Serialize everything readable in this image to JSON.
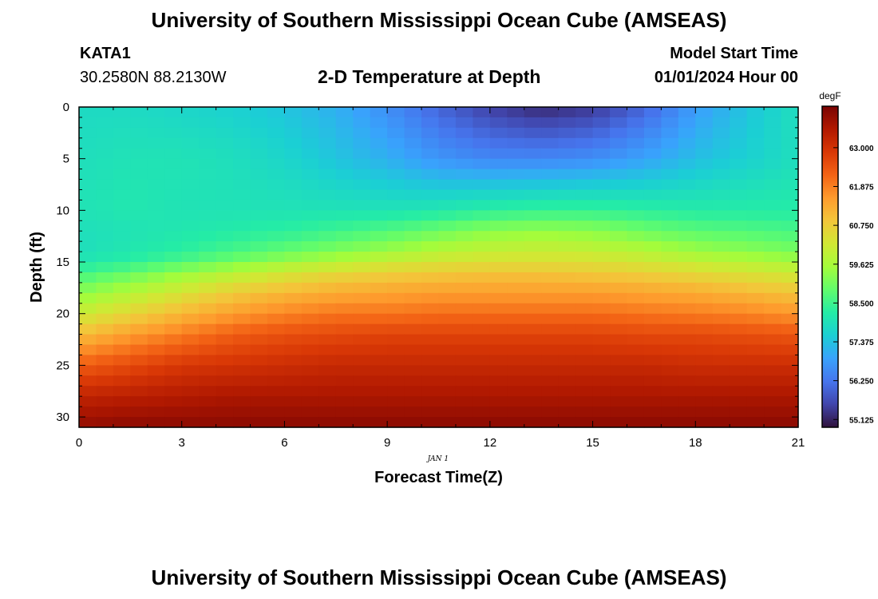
{
  "header": {
    "title": "University of Southern Mississippi Ocean Cube (AMSEAS)",
    "station": "KATA1",
    "coords": "30.2580N  88.2130W",
    "subtitle": "2-D Temperature at Depth",
    "start_label": "Model Start Time",
    "start_value": "01/01/2024 Hour 00"
  },
  "footer": {
    "title": "University of Southern Mississippi Ocean Cube (AMSEAS)"
  },
  "chart_data": {
    "type": "heatmap",
    "title": "2-D Temperature at Depth",
    "xlabel": "Forecast Time(Z)",
    "ylabel": "Depth (ft)",
    "x_date_label": "JAN 1",
    "xlim": [
      0,
      21
    ],
    "ylim": [
      31,
      0
    ],
    "xticks": [
      0,
      3,
      6,
      9,
      12,
      15,
      18,
      21
    ],
    "yticks": [
      0,
      5,
      10,
      15,
      20,
      25,
      30
    ],
    "colorbar": {
      "units": "degF",
      "min": 54.9,
      "max": 64.2,
      "ticks": [
        "63.000",
        "61.875",
        "60.750",
        "59.625",
        "58.500",
        "57.375",
        "56.250",
        "55.125"
      ],
      "colors": [
        "#30123b",
        "#4145ab",
        "#4675ed",
        "#39a2fc",
        "#1bcfd4",
        "#24eca6",
        "#61fc6c",
        "#a4fc3b",
        "#d1e834",
        "#f3c63a",
        "#fe9b2d",
        "#f36315",
        "#d93806",
        "#b11901",
        "#7a0403"
      ]
    },
    "depths": [
      0,
      5,
      10,
      12,
      14,
      15,
      16,
      18,
      20,
      22,
      25,
      28,
      31
    ],
    "times": [
      0,
      1.5,
      3,
      4.5,
      6,
      7.5,
      9,
      10.5,
      12,
      13.5,
      15,
      16.5,
      18,
      19.5,
      21
    ],
    "values": [
      [
        57.8,
        57.8,
        57.7,
        57.6,
        57.4,
        57.1,
        56.6,
        56.0,
        55.5,
        55.2,
        55.4,
        56.0,
        56.8,
        57.4,
        57.9
      ],
      [
        57.9,
        58.0,
        58.0,
        57.9,
        57.7,
        57.4,
        57.1,
        56.7,
        56.5,
        56.5,
        56.6,
        56.9,
        57.3,
        57.6,
        57.9
      ],
      [
        58.0,
        58.1,
        58.0,
        58.0,
        58.0,
        58.0,
        58.0,
        58.1,
        58.3,
        58.4,
        58.4,
        58.3,
        58.2,
        58.2,
        58.2
      ],
      [
        57.9,
        58.0,
        58.1,
        58.2,
        58.3,
        58.5,
        58.7,
        59.0,
        59.3,
        59.4,
        59.3,
        59.0,
        58.8,
        58.7,
        58.6
      ],
      [
        57.9,
        58.1,
        58.3,
        58.6,
        58.9,
        59.2,
        59.5,
        59.8,
        60.0,
        60.1,
        60.0,
        59.8,
        59.5,
        59.3,
        59.1
      ],
      [
        58.1,
        58.3,
        58.7,
        59.1,
        59.5,
        59.8,
        60.1,
        60.3,
        60.4,
        60.4,
        60.4,
        60.2,
        60.0,
        59.8,
        59.6
      ],
      [
        58.5,
        58.9,
        59.4,
        59.8,
        60.2,
        60.5,
        60.7,
        60.8,
        60.9,
        60.9,
        60.8,
        60.7,
        60.5,
        60.3,
        60.1
      ],
      [
        59.3,
        59.8,
        60.3,
        60.8,
        61.1,
        61.3,
        61.4,
        61.5,
        61.5,
        61.5,
        61.5,
        61.4,
        61.3,
        61.1,
        60.9
      ],
      [
        60.1,
        60.6,
        61.1,
        61.5,
        61.8,
        62.0,
        62.0,
        62.1,
        62.1,
        62.1,
        62.1,
        62.0,
        61.9,
        61.8,
        61.6
      ],
      [
        61.0,
        61.5,
        61.9,
        62.3,
        62.5,
        62.6,
        62.7,
        62.7,
        62.7,
        62.7,
        62.7,
        62.6,
        62.6,
        62.5,
        62.4
      ],
      [
        62.3,
        62.6,
        62.9,
        63.0,
        63.1,
        63.2,
        63.2,
        63.2,
        63.2,
        63.2,
        63.2,
        63.2,
        63.1,
        63.1,
        63.1
      ],
      [
        63.3,
        63.4,
        63.5,
        63.6,
        63.6,
        63.6,
        63.6,
        63.6,
        63.6,
        63.6,
        63.6,
        63.6,
        63.6,
        63.6,
        63.6
      ],
      [
        63.9,
        64.0,
        64.0,
        64.0,
        64.0,
        64.0,
        64.0,
        64.0,
        64.0,
        64.0,
        64.0,
        64.0,
        64.0,
        64.0,
        64.0
      ]
    ]
  }
}
